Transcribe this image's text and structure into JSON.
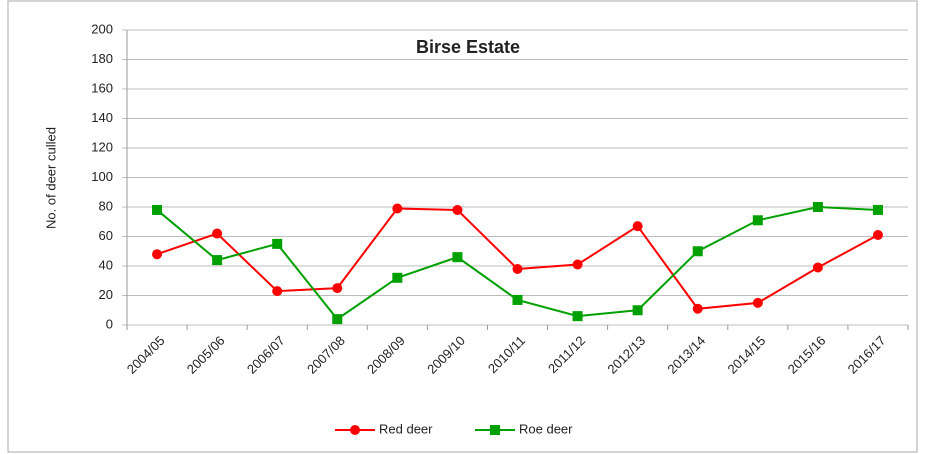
{
  "chart_data": {
    "type": "line",
    "title": "Birse Estate",
    "y_label": "No. of deer culled",
    "categories": [
      "2004/05",
      "2005/06",
      "2006/07",
      "2007/08",
      "2008/09",
      "2009/10",
      "2010/11",
      "2011/12",
      "2012/13",
      "2013/14",
      "2014/15",
      "2015/16",
      "2016/17"
    ],
    "series": [
      {
        "name": "Red deer",
        "color": "#ff0000",
        "marker": "circle",
        "values": [
          48,
          62,
          23,
          25,
          79,
          78,
          38,
          41,
          67,
          11,
          15,
          39,
          61
        ]
      },
      {
        "name": "Roe deer",
        "color": "#00a000",
        "marker": "square",
        "values": [
          78,
          44,
          55,
          4,
          32,
          46,
          17,
          6,
          10,
          50,
          71,
          80,
          78
        ]
      }
    ],
    "ylim": [
      0,
      200
    ],
    "yticks": [
      0,
      20,
      40,
      60,
      80,
      100,
      120,
      140,
      160,
      180,
      200
    ],
    "grid": true,
    "legend": "bottom"
  }
}
